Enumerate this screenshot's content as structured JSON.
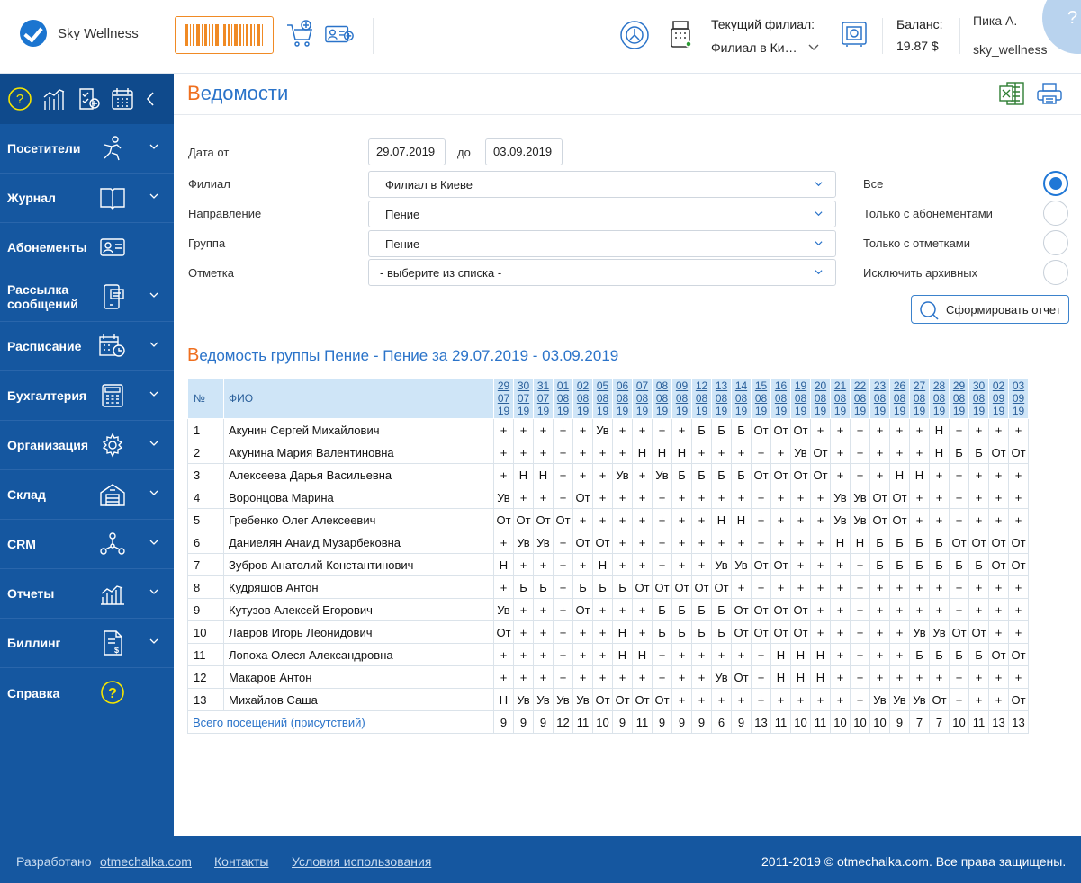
{
  "header": {
    "app_name": "Sky Wellness",
    "branch_label": "Текущий филиал:",
    "branch_value": "Филиал в Ки…",
    "balance_label": "Баланс:",
    "balance_value": "19.87 $",
    "user_name": "Пика А.",
    "user_login": "sky_wellness",
    "help": "?"
  },
  "sidebar": {
    "items": [
      {
        "label": "Посетители",
        "icon": "visitor-icon",
        "chevron": true
      },
      {
        "label": "Журнал",
        "icon": "book-icon",
        "chevron": true
      },
      {
        "label": "Абонементы",
        "icon": "card-icon",
        "chevron": false
      },
      {
        "label": "Рассылка сообщений",
        "icon": "phone-message-icon",
        "chevron": true
      },
      {
        "label": "Расписание",
        "icon": "calendar-clock-icon",
        "chevron": true
      },
      {
        "label": "Бухгалтерия",
        "icon": "calculator-icon",
        "chevron": true
      },
      {
        "label": "Организация",
        "icon": "gear-icon",
        "chevron": true
      },
      {
        "label": "Склад",
        "icon": "warehouse-icon",
        "chevron": true
      },
      {
        "label": "CRM",
        "icon": "network-icon",
        "chevron": true
      },
      {
        "label": "Отчеты",
        "icon": "chart-icon",
        "chevron": true
      },
      {
        "label": "Биллинг",
        "icon": "invoice-icon",
        "chevron": true
      },
      {
        "label": "Справка",
        "icon": "help-circle-icon",
        "chevron": false
      }
    ]
  },
  "page": {
    "title_first": "В",
    "title_rest": "едомости"
  },
  "filters": {
    "date_from_label": "Дата от",
    "date_from": "29.07.2019",
    "date_to_label": "до",
    "date_to": "03.09.2019",
    "branch_label": "Филиал",
    "branch": "Филиал в Киеве",
    "direction_label": "Направление",
    "direction": "Пение",
    "group_label": "Группа",
    "group": "Пение",
    "mark_label": "Отметка",
    "mark": "- выберите из списка -",
    "radio_all": "Все",
    "radio_subscriptions": "Только с абонементами",
    "radio_marks": "Только с отметками",
    "radio_exclude_archived": "Исключить архивных",
    "selected_radio": "all",
    "submit": "Сформировать отчет"
  },
  "report": {
    "title_first": "В",
    "title_rest": "едомость группы Пение - Пение за 29.07.2019 - 03.09.2019",
    "col_num": "№",
    "col_name": "ФИО",
    "dates": [
      [
        "29",
        "07",
        "19"
      ],
      [
        "30",
        "07",
        "19"
      ],
      [
        "31",
        "07",
        "19"
      ],
      [
        "01",
        "08",
        "19"
      ],
      [
        "02",
        "08",
        "19"
      ],
      [
        "05",
        "08",
        "19"
      ],
      [
        "06",
        "08",
        "19"
      ],
      [
        "07",
        "08",
        "19"
      ],
      [
        "08",
        "08",
        "19"
      ],
      [
        "09",
        "08",
        "19"
      ],
      [
        "12",
        "08",
        "19"
      ],
      [
        "13",
        "08",
        "19"
      ],
      [
        "14",
        "08",
        "19"
      ],
      [
        "15",
        "08",
        "19"
      ],
      [
        "16",
        "08",
        "19"
      ],
      [
        "19",
        "08",
        "19"
      ],
      [
        "20",
        "08",
        "19"
      ],
      [
        "21",
        "08",
        "19"
      ],
      [
        "22",
        "08",
        "19"
      ],
      [
        "23",
        "08",
        "19"
      ],
      [
        "26",
        "08",
        "19"
      ],
      [
        "27",
        "08",
        "19"
      ],
      [
        "28",
        "08",
        "19"
      ],
      [
        "29",
        "08",
        "19"
      ],
      [
        "30",
        "08",
        "19"
      ],
      [
        "02",
        "09",
        "19"
      ],
      [
        "03",
        "09",
        "19"
      ]
    ],
    "rows": [
      {
        "n": "1",
        "name": "Акунин Сергей Михайлович",
        "marks": [
          "+",
          "+",
          "+",
          "+",
          "+",
          "Ув",
          "+",
          "+",
          "+",
          "+",
          "Б",
          "Б",
          "Б",
          "От",
          "От",
          "От",
          "+",
          "+",
          "+",
          "+",
          "+",
          "+",
          "Н",
          "+",
          "+",
          "+",
          "+"
        ]
      },
      {
        "n": "2",
        "name": "Акунина Мария Валентиновна",
        "marks": [
          "+",
          "+",
          "+",
          "+",
          "+",
          "+",
          "+",
          "Н",
          "Н",
          "Н",
          "+",
          "+",
          "+",
          "+",
          "+",
          "Ув",
          "От",
          "+",
          "+",
          "+",
          "+",
          "+",
          "Н",
          "Б",
          "Б",
          "От",
          "От"
        ]
      },
      {
        "n": "3",
        "name": "Алексеева Дарья Васильевна",
        "marks": [
          "+",
          "Н",
          "Н",
          "+",
          "+",
          "+",
          "Ув",
          "+",
          "Ув",
          "Б",
          "Б",
          "Б",
          "Б",
          "От",
          "От",
          "От",
          "От",
          "+",
          "+",
          "+",
          "Н",
          "Н",
          "+",
          "+",
          "+",
          "+",
          "+"
        ]
      },
      {
        "n": "4",
        "name": "Воронцова Марина",
        "marks": [
          "Ув",
          "+",
          "+",
          "+",
          "От",
          "+",
          "+",
          "+",
          "+",
          "+",
          "+",
          "+",
          "+",
          "+",
          "+",
          "+",
          "+",
          "Ув",
          "Ув",
          "От",
          "От",
          "+",
          "+",
          "+",
          "+",
          "+",
          "+"
        ]
      },
      {
        "n": "5",
        "name": "Гребенко Олег Алексеевич",
        "marks": [
          "От",
          "От",
          "От",
          "От",
          "+",
          "+",
          "+",
          "+",
          "+",
          "+",
          "+",
          "Н",
          "Н",
          "+",
          "+",
          "+",
          "+",
          "Ув",
          "Ув",
          "От",
          "От",
          "+",
          "+",
          "+",
          "+",
          "+",
          "+"
        ]
      },
      {
        "n": "6",
        "name": "Даниелян Анаид Музарбековна",
        "marks": [
          "+",
          "Ув",
          "Ув",
          "+",
          "От",
          "От",
          "+",
          "+",
          "+",
          "+",
          "+",
          "+",
          "+",
          "+",
          "+",
          "+",
          "+",
          "Н",
          "Н",
          "Б",
          "Б",
          "Б",
          "Б",
          "От",
          "От",
          "От",
          "От"
        ]
      },
      {
        "n": "7",
        "name": "Зубров Анатолий Константинович",
        "marks": [
          "Н",
          "+",
          "+",
          "+",
          "+",
          "Н",
          "+",
          "+",
          "+",
          "+",
          "+",
          "Ув",
          "Ув",
          "От",
          "От",
          "+",
          "+",
          "+",
          "+",
          "Б",
          "Б",
          "Б",
          "Б",
          "Б",
          "Б",
          "От",
          "От"
        ]
      },
      {
        "n": "8",
        "name": "Кудряшов Антон",
        "marks": [
          "+",
          "Б",
          "Б",
          "+",
          "Б",
          "Б",
          "Б",
          "От",
          "От",
          "От",
          "От",
          "От",
          "+",
          "+",
          "+",
          "+",
          "+",
          "+",
          "+",
          "+",
          "+",
          "+",
          "+",
          "+",
          "+",
          "+",
          "+"
        ]
      },
      {
        "n": "9",
        "name": "Кутузов Алексей Егорович",
        "marks": [
          "Ув",
          "+",
          "+",
          "+",
          "От",
          "+",
          "+",
          "+",
          "Б",
          "Б",
          "Б",
          "Б",
          "От",
          "От",
          "От",
          "От",
          "+",
          "+",
          "+",
          "+",
          "+",
          "+",
          "+",
          "+",
          "+",
          "+",
          "+"
        ]
      },
      {
        "n": "10",
        "name": "Лавров Игорь Леонидович",
        "marks": [
          "От",
          "+",
          "+",
          "+",
          "+",
          "+",
          "Н",
          "+",
          "Б",
          "Б",
          "Б",
          "Б",
          "От",
          "От",
          "От",
          "От",
          "+",
          "+",
          "+",
          "+",
          "+",
          "Ув",
          "Ув",
          "От",
          "От",
          "+",
          "+"
        ]
      },
      {
        "n": "11",
        "name": "Лопоха Олеся Александровна",
        "marks": [
          "+",
          "+",
          "+",
          "+",
          "+",
          "+",
          "Н",
          "Н",
          "+",
          "+",
          "+",
          "+",
          "+",
          "+",
          "Н",
          "Н",
          "Н",
          "+",
          "+",
          "+",
          "+",
          "Б",
          "Б",
          "Б",
          "Б",
          "От",
          "От"
        ]
      },
      {
        "n": "12",
        "name": "Макаров Антон",
        "marks": [
          "+",
          "+",
          "+",
          "+",
          "+",
          "+",
          "+",
          "+",
          "+",
          "+",
          "+",
          "Ув",
          "От",
          "+",
          "Н",
          "Н",
          "Н",
          "+",
          "+",
          "+",
          "+",
          "+",
          "+",
          "+",
          "+",
          "+",
          "+"
        ]
      },
      {
        "n": "13",
        "name": "Михайлов Саша",
        "marks": [
          "Н",
          "Ув",
          "Ув",
          "Ув",
          "Ув",
          "От",
          "От",
          "От",
          "От",
          "+",
          "+",
          "+",
          "+",
          "+",
          "+",
          "+",
          "+",
          "+",
          "+",
          "Ув",
          "Ув",
          "Ув",
          "От",
          "+",
          "+",
          "+",
          "От"
        ]
      }
    ],
    "total_label": "Всего посещений (присутствий)",
    "totals": [
      "9",
      "9",
      "9",
      "12",
      "11",
      "10",
      "9",
      "11",
      "9",
      "9",
      "9",
      "6",
      "9",
      "13",
      "11",
      "10",
      "11",
      "10",
      "10",
      "10",
      "9",
      "7",
      "7",
      "10",
      "11",
      "13",
      "13"
    ]
  },
  "footer": {
    "developed_label": "Разработано",
    "developer_link": "otmechalka.com",
    "contacts": "Контакты",
    "terms": "Условия использования",
    "copyright": "2011-2019 © otmechalka.com. Все права защищены."
  },
  "colors": {
    "brand_blue": "#1557a0",
    "accent_orange": "#f08a24",
    "link_blue": "#2a73c9",
    "mark_present": "#111111",
    "mark_valid_absence": "#2c9a34",
    "mark_absent": "#e02020",
    "mark_sick": "#f0a020",
    "mark_off": "#2a73c9"
  }
}
